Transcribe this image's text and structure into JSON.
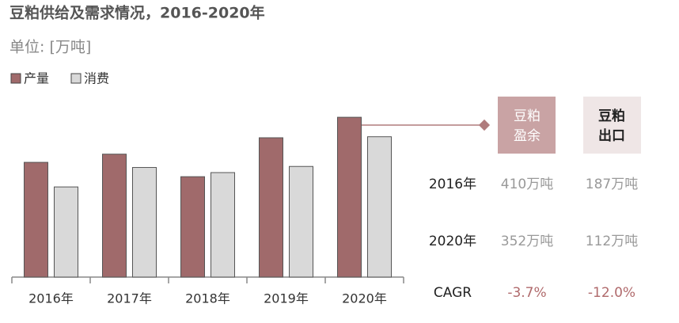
{
  "chart_data": {
    "type": "bar",
    "title": "豆粕供给及需求情况，2016-2020年",
    "subtitle": "单位: [万吨]",
    "categories": [
      "2016年",
      "2017年",
      "2018年",
      "2019年",
      "2020年"
    ],
    "series": [
      {
        "name": "产量",
        "color": "#a06a6b",
        "values": [
          112,
          120,
          98,
          136,
          156
        ]
      },
      {
        "name": "消费",
        "color": "#d9d9d9",
        "values": [
          88,
          107,
          102,
          108,
          137
        ]
      }
    ],
    "ylim": [
      0,
      170
    ]
  },
  "table": {
    "headers": [
      [
        "豆粕",
        "盈余"
      ],
      [
        "豆粕",
        "出口"
      ]
    ],
    "rows": [
      [
        "2016年",
        "410万吨",
        "187万吨"
      ],
      [
        "2020年",
        "352万吨",
        "112万吨"
      ],
      [
        "CAGR",
        "-3.7%",
        "-12.0%"
      ]
    ]
  }
}
